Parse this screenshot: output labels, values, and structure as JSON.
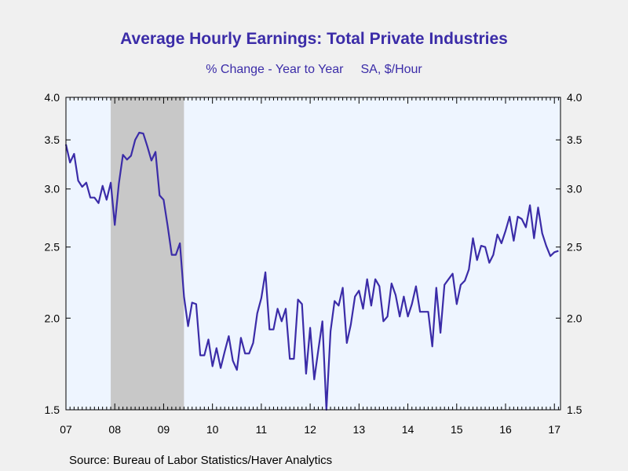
{
  "colors": {
    "page_background": "#f0f0f0",
    "plot_background": "#eef5ff",
    "recession_shade": "#c8c8c8",
    "series_line": "#3b2ca8",
    "title": "#3b2ca8"
  },
  "chart_data": {
    "type": "line",
    "title": "Average Hourly Earnings: Total Private Industries",
    "subtitle_left": "% Change - Year to Year",
    "subtitle_right": "SA, $/Hour",
    "source": "Source:  Bureau of Labor Statistics/Haver Analytics",
    "y_scale": "log",
    "ylim": [
      1.5,
      4.0
    ],
    "xlim": [
      2007.0,
      2017.125
    ],
    "y_ticks": [
      1.5,
      2.0,
      2.5,
      3.0,
      3.5,
      4.0
    ],
    "y_tick_labels": [
      "1.5",
      "2.0",
      "2.5",
      "3.0",
      "3.5",
      "4.0"
    ],
    "x_ticks": [
      2007,
      2008,
      2009,
      2010,
      2011,
      2012,
      2013,
      2014,
      2015,
      2016,
      2017
    ],
    "x_tick_labels": [
      "07",
      "08",
      "09",
      "10",
      "11",
      "12",
      "13",
      "14",
      "15",
      "16",
      "17"
    ],
    "recession_band": [
      2007.917,
      2009.417
    ],
    "grid": false,
    "legend": "none",
    "series": [
      {
        "x": [
          2007.0,
          2007.083,
          2007.167,
          2007.25,
          2007.333,
          2007.417,
          2007.5,
          2007.583,
          2007.667,
          2007.75,
          2007.833,
          2007.917,
          2008.0,
          2008.083,
          2008.167,
          2008.25,
          2008.333,
          2008.417,
          2008.5,
          2008.583,
          2008.667,
          2008.75,
          2008.833,
          2008.917,
          2009.0,
          2009.083,
          2009.167,
          2009.25,
          2009.333,
          2009.417,
          2009.5,
          2009.583,
          2009.667,
          2009.75,
          2009.833,
          2009.917,
          2010.0,
          2010.083,
          2010.167,
          2010.25,
          2010.333,
          2010.417,
          2010.5,
          2010.583,
          2010.667,
          2010.75,
          2010.833,
          2010.917,
          2011.0,
          2011.083,
          2011.167,
          2011.25,
          2011.333,
          2011.417,
          2011.5,
          2011.583,
          2011.667,
          2011.75,
          2011.833,
          2011.917,
          2012.0,
          2012.083,
          2012.167,
          2012.25,
          2012.333,
          2012.417,
          2012.5,
          2012.583,
          2012.667,
          2012.75,
          2012.833,
          2012.917,
          2013.0,
          2013.083,
          2013.167,
          2013.25,
          2013.333,
          2013.417,
          2013.5,
          2013.583,
          2013.667,
          2013.75,
          2013.833,
          2013.917,
          2014.0,
          2014.083,
          2014.167,
          2014.25,
          2014.333,
          2014.417,
          2014.5,
          2014.583,
          2014.667,
          2014.75,
          2014.833,
          2014.917,
          2015.0,
          2015.083,
          2015.167,
          2015.25,
          2015.333,
          2015.417,
          2015.5,
          2015.583,
          2015.667,
          2015.75,
          2015.833,
          2015.917,
          2016.0,
          2016.083,
          2016.167,
          2016.25,
          2016.333,
          2016.417,
          2016.5,
          2016.583,
          2016.667,
          2016.75,
          2016.833,
          2016.917,
          2017.0,
          2017.083
        ],
        "values": [
          3.45,
          3.26,
          3.35,
          3.08,
          3.02,
          3.06,
          2.92,
          2.92,
          2.87,
          3.03,
          2.9,
          3.06,
          2.68,
          3.05,
          3.34,
          3.29,
          3.33,
          3.5,
          3.58,
          3.57,
          3.43,
          3.28,
          3.37,
          2.94,
          2.9,
          2.67,
          2.44,
          2.44,
          2.53,
          2.14,
          1.95,
          2.1,
          2.09,
          1.78,
          1.78,
          1.87,
          1.72,
          1.82,
          1.71,
          1.8,
          1.89,
          1.75,
          1.7,
          1.88,
          1.79,
          1.79,
          1.85,
          2.03,
          2.13,
          2.31,
          1.93,
          1.93,
          2.06,
          1.98,
          2.06,
          1.76,
          1.76,
          2.12,
          2.09,
          1.68,
          1.94,
          1.65,
          1.81,
          1.98,
          1.5,
          1.92,
          2.11,
          2.08,
          2.2,
          1.85,
          1.96,
          2.14,
          2.18,
          2.06,
          2.26,
          2.08,
          2.26,
          2.21,
          1.98,
          2.01,
          2.23,
          2.15,
          2.01,
          2.14,
          2.01,
          2.09,
          2.21,
          2.04,
          2.04,
          2.04,
          1.83,
          2.2,
          1.91,
          2.22,
          2.26,
          2.3,
          2.09,
          2.22,
          2.25,
          2.33,
          2.57,
          2.4,
          2.51,
          2.5,
          2.38,
          2.44,
          2.6,
          2.53,
          2.63,
          2.75,
          2.55,
          2.75,
          2.73,
          2.66,
          2.85,
          2.57,
          2.83,
          2.61,
          2.51,
          2.43,
          2.46,
          2.47
        ]
      }
    ]
  }
}
